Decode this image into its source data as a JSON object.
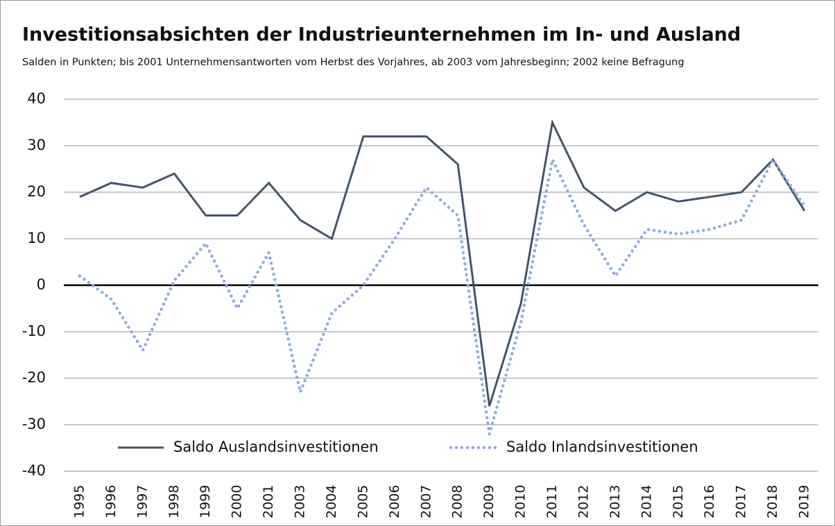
{
  "chart_data": {
    "type": "line",
    "title": "Investitionsabsichten der Industrieunternehmen im In- und Ausland",
    "subtitle": "Salden in Punkten; bis 2001 Unternehmensantworten vom Herbst des Vorjahres, ab 2003 vom Jahresbeginn; 2002 keine Befragung",
    "categories": [
      "1995",
      "1996",
      "1997",
      "1998",
      "1999",
      "2000",
      "2001",
      "2003",
      "2004",
      "2005",
      "2006",
      "2007",
      "2008",
      "2009",
      "2010",
      "2011",
      "2012",
      "2013",
      "2014",
      "2015",
      "2016",
      "2017",
      "2018",
      "2019"
    ],
    "series": [
      {
        "name": "Saldo Auslandsinvestitionen",
        "color": "#44546a",
        "style": "solid",
        "values": [
          19,
          22,
          21,
          24,
          15,
          15,
          22,
          14,
          10,
          32,
          32,
          32,
          26,
          -26,
          -4,
          35,
          21,
          16,
          20,
          18,
          19,
          20,
          27,
          16
        ]
      },
      {
        "name": "Saldo Inlandsinvestitionen",
        "color": "#8faadc",
        "style": "dotted",
        "values": [
          2,
          -3,
          -14,
          1,
          9,
          -5,
          7,
          -23,
          -6,
          0,
          10,
          21,
          15,
          -32,
          -8,
          27,
          13,
          2,
          12,
          11,
          12,
          14,
          27,
          17
        ]
      }
    ],
    "ylim": [
      -40,
      40
    ],
    "yticks": [
      -40,
      -30,
      -20,
      -10,
      0,
      10,
      20,
      30,
      40
    ],
    "grid": true,
    "legend": "lower center"
  }
}
